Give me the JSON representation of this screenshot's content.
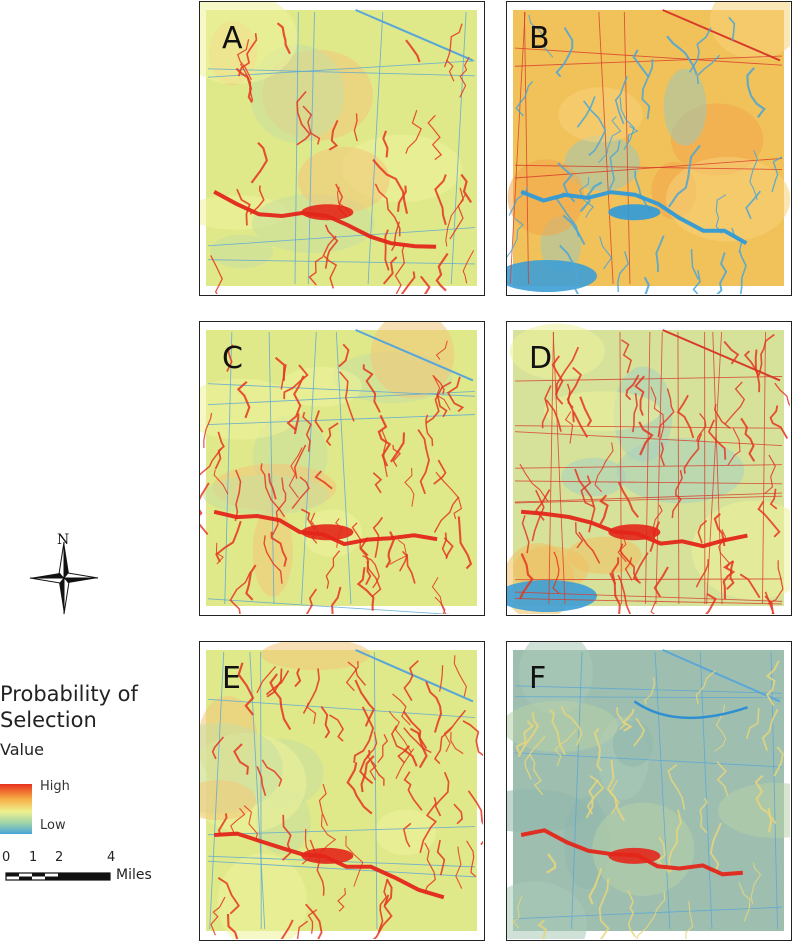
{
  "panels": [
    {
      "label": "A",
      "theme": "yellow",
      "network": "sparse"
    },
    {
      "label": "B",
      "theme": "orange",
      "network": "sparse"
    },
    {
      "label": "C",
      "theme": "yellow",
      "network": "dense"
    },
    {
      "label": "D",
      "theme": "mixed",
      "network": "grid"
    },
    {
      "label": "E",
      "theme": "yellow",
      "network": "dense"
    },
    {
      "label": "F",
      "theme": "teal",
      "network": "sparse"
    }
  ],
  "legend": {
    "title_line1": "Probability of",
    "title_line2": "Selection",
    "subtitle": "Value",
    "high": "High",
    "low": "Low",
    "colors": {
      "high": "#e8321e",
      "mid": "#eef08e",
      "low": "#4aa3d8"
    }
  },
  "north_arrow": {
    "label": "N"
  },
  "scale_bar": {
    "ticks": [
      "0",
      "1",
      "2",
      "4"
    ],
    "unit": "Miles"
  }
}
